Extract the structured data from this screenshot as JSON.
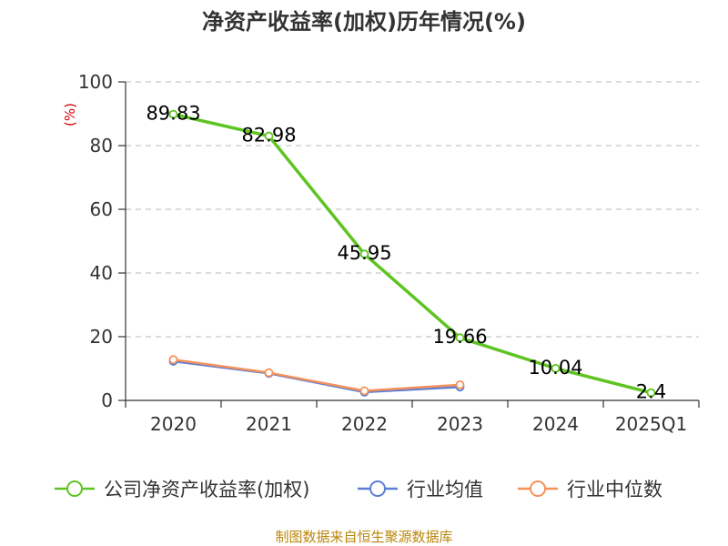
{
  "chart_data": {
    "type": "line",
    "title": "净资产收益率(加权)历年情况(%)",
    "ylabel": "(%)",
    "xlabel": "",
    "categories": [
      "2020",
      "2021",
      "2022",
      "2023",
      "2024",
      "2025Q1"
    ],
    "yticks": [
      "0",
      "20",
      "40",
      "60",
      "80",
      "100"
    ],
    "ylim": [
      0,
      100
    ],
    "grid": true,
    "legend_position": "bottom",
    "series": [
      {
        "name": "公司净资产收益率(加权)",
        "color": "#5ec421",
        "values": [
          89.83,
          82.98,
          45.95,
          19.66,
          10.04,
          2.4
        ],
        "labels": [
          "89.83",
          "82.98",
          "45.95",
          "19.66",
          "10.04",
          "2.4"
        ],
        "show_labels": true
      },
      {
        "name": "行业均值",
        "color": "#5b7fd6",
        "values": [
          12.3,
          8.5,
          2.6,
          4.2,
          null,
          null
        ],
        "show_labels": false
      },
      {
        "name": "行业中位数",
        "color": "#f5915a",
        "values": [
          12.8,
          8.7,
          3.0,
          4.9,
          null,
          null
        ],
        "show_labels": false
      }
    ],
    "source": "制图数据来自恒生聚源数据库"
  }
}
